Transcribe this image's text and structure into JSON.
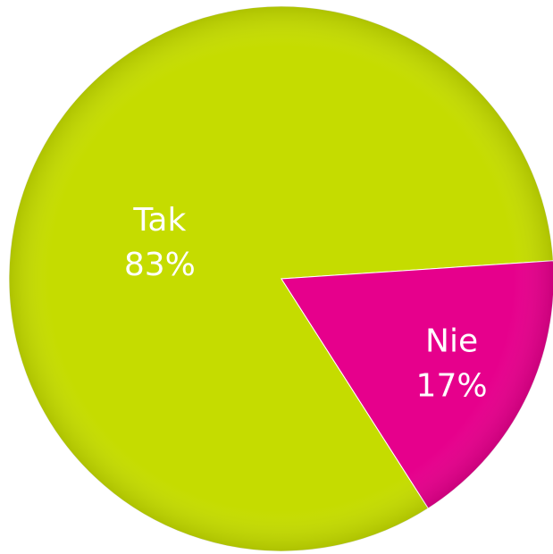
{
  "chart_data": {
    "type": "pie",
    "categories": [
      "Tak",
      "Nie"
    ],
    "values": [
      83,
      17
    ],
    "value_labels": [
      "83%",
      "17%"
    ],
    "colors": [
      "#c5dc00",
      "#e6008c"
    ]
  }
}
